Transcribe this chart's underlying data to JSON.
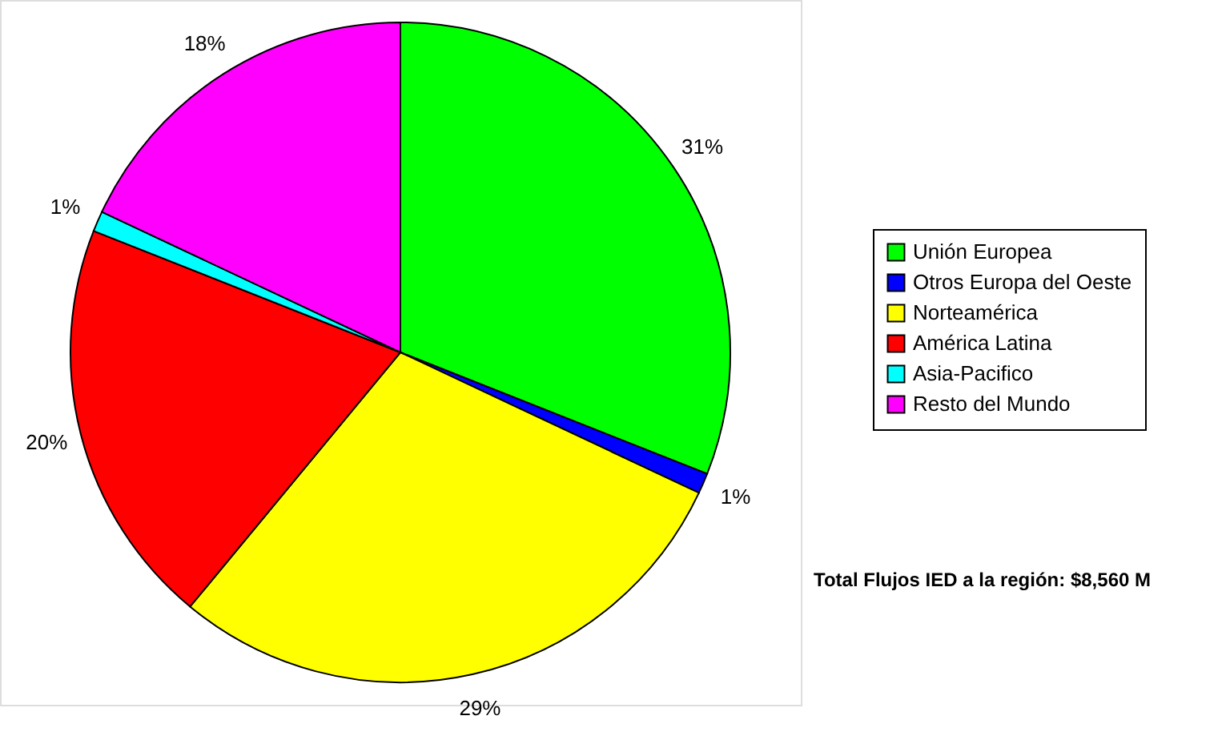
{
  "chart_data": {
    "type": "pie",
    "categories": [
      "Unión Europea",
      "Otros Europa del Oeste",
      "Norteamérica",
      "América Latina",
      "Asia-Pacifico",
      "Resto del Mundo"
    ],
    "values": [
      31,
      1,
      29,
      20,
      1,
      18
    ],
    "colors": [
      "#00ff00",
      "#0000ff",
      "#ffff00",
      "#ff0000",
      "#00ffff",
      "#ff00ff"
    ],
    "value_labels": [
      "31%",
      "1%",
      "29%",
      "20%",
      "1%",
      "18%"
    ],
    "legend": "right",
    "annotations": [
      "Total Flujos IED a la región:  $8,560 M"
    ]
  }
}
